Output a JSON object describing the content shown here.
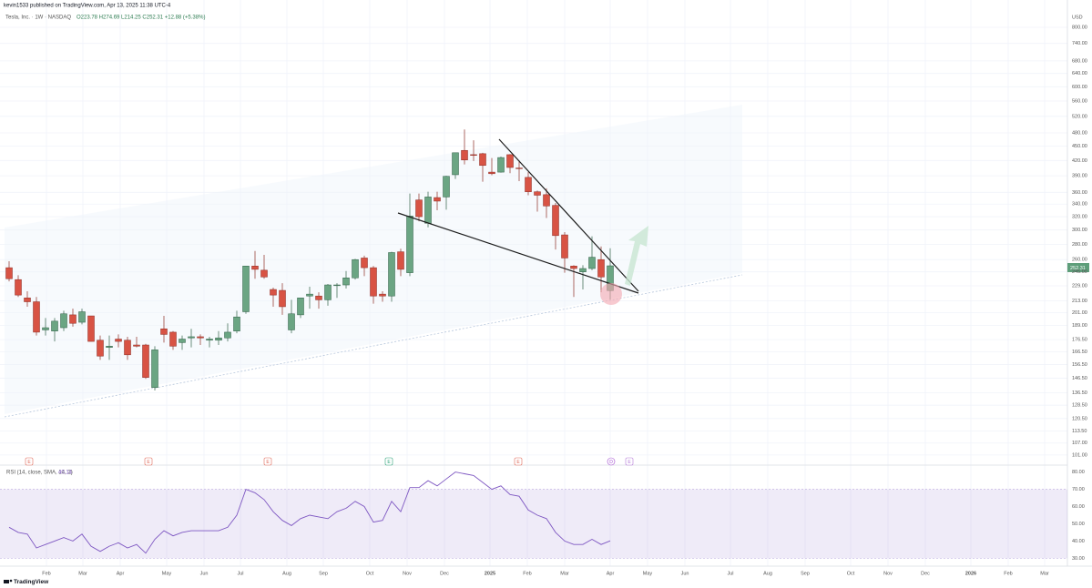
{
  "header": {
    "publisher": "kevin1533 published on TradingView.com, Apr 13, 2025 11:38 UTC-4",
    "symbol": "Tesla, Inc. · 1W · NASDAQ",
    "ohlc": "O223.78 H274.69 L214.25 C252.31 +12.88 (+5.38%)",
    "currency": "USD",
    "brand": "TradingView"
  },
  "events": [
    "E",
    "E",
    "E",
    "E",
    "E",
    "D",
    "E"
  ],
  "chart_data": [
    {
      "type": "candlestick",
      "log_scale": true,
      "grid": true,
      "up_color": "#6ba583",
      "down_color": "#d85344",
      "open": [
        250,
        236,
        216,
        212,
        185,
        184,
        187,
        199,
        192,
        198,
        176,
        170,
        177,
        176,
        172,
        172,
        140,
        186,
        183,
        174,
        178,
        179,
        176,
        176,
        178,
        184,
        202,
        252,
        247,
        225,
        224,
        185,
        199,
        218,
        218,
        214,
        230,
        230,
        238,
        262,
        250,
        220,
        218,
        270,
        244,
        347,
        310,
        351,
        352,
        392,
        441,
        432,
        434,
        397,
        397,
        432,
        405,
        387,
        361,
        356,
        338,
        293,
        252,
        245,
        249,
        260,
        223.78
      ],
      "high": [
        258,
        241,
        223,
        217,
        196,
        196,
        203,
        205,
        205,
        198,
        180,
        180,
        181,
        179,
        179,
        173,
        171,
        198,
        184,
        180,
        186,
        181,
        179,
        184,
        191,
        203,
        252,
        271,
        266,
        227,
        232,
        214,
        215,
        228,
        222,
        231,
        232,
        246,
        261,
        265,
        252,
        223,
        270,
        274,
        358,
        358,
        361,
        361,
        390,
        436,
        488,
        463,
        436,
        425,
        428,
        433,
        420,
        397,
        363,
        367,
        342,
        297,
        253,
        253,
        291,
        277,
        274.69
      ],
      "low": [
        234,
        217,
        207,
        180,
        180,
        175,
        184,
        188,
        190,
        175,
        160,
        160,
        170,
        160,
        170,
        146,
        138,
        174,
        168,
        168,
        170,
        172,
        170,
        172,
        175,
        182,
        200,
        237,
        237,
        207,
        199,
        182,
        196,
        205,
        205,
        208,
        216,
        226,
        236,
        240,
        210,
        212,
        212,
        240,
        240,
        313,
        304,
        330,
        331,
        384,
        412,
        419,
        379,
        391,
        396,
        395,
        380,
        355,
        328,
        318,
        273,
        244,
        217,
        225,
        247,
        222,
        214.25
      ],
      "close": [
        237,
        219,
        212,
        183,
        187,
        193,
        200,
        191,
        202,
        175,
        163,
        171,
        175,
        164,
        171,
        147,
        168,
        181,
        171,
        177,
        179,
        178,
        177,
        178,
        183,
        197,
        252,
        248,
        239,
        219,
        207,
        200,
        216,
        220,
        214,
        230,
        230,
        238,
        260,
        250,
        218,
        218,
        269,
        248,
        321,
        320,
        352,
        345,
        389,
        436,
        421,
        431,
        410,
        394,
        426,
        406,
        404,
        361,
        355,
        337,
        292,
        262,
        249,
        249,
        263,
        239,
        252.31
      ],
      "xlim": [
        -1,
        116.2
      ],
      "xticks": [
        {
          "value": 4.1,
          "label": "Feb"
        },
        {
          "value": 8.1,
          "label": "Mar"
        },
        {
          "value": 12.2,
          "label": "Apr"
        },
        {
          "value": 17.3,
          "label": "May"
        },
        {
          "value": 21.4,
          "label": "Jun"
        },
        {
          "value": 25.4,
          "label": "Jul"
        },
        {
          "value": 30.5,
          "label": "Aug"
        },
        {
          "value": 34.5,
          "label": "Sep"
        },
        {
          "value": 39.6,
          "label": "Oct"
        },
        {
          "value": 43.7,
          "label": "Nov"
        },
        {
          "value": 47.8,
          "label": "Dec"
        },
        {
          "value": 52.8,
          "label": "2025"
        },
        {
          "value": 56.9,
          "label": "Feb"
        },
        {
          "value": 61,
          "label": "Mar"
        },
        {
          "value": 66,
          "label": "Apr"
        },
        {
          "value": 70.1,
          "label": "May"
        },
        {
          "value": 74.2,
          "label": "Jun"
        },
        {
          "value": 79.2,
          "label": "Jul"
        },
        {
          "value": 83.3,
          "label": "Aug"
        },
        {
          "value": 87.4,
          "label": "Sep"
        },
        {
          "value": 92.4,
          "label": "Oct"
        },
        {
          "value": 96.5,
          "label": "Nov"
        },
        {
          "value": 100.6,
          "label": "Dec"
        },
        {
          "value": 105.6,
          "label": "2026"
        },
        {
          "value": 109.7,
          "label": "Feb"
        },
        {
          "value": 113.7,
          "label": "Mar"
        }
      ],
      "ylim": [
        96.6,
        866
      ],
      "yticks": [
        {
          "value": 800,
          "label": "800.00"
        },
        {
          "value": 740,
          "label": "740.00"
        },
        {
          "value": 680,
          "label": "680.00"
        },
        {
          "value": 640,
          "label": "640.00"
        },
        {
          "value": 600,
          "label": "600.00"
        },
        {
          "value": 560,
          "label": "560.00"
        },
        {
          "value": 520,
          "label": "520.00"
        },
        {
          "value": 480,
          "label": "480.00"
        },
        {
          "value": 450,
          "label": "450.00"
        },
        {
          "value": 420,
          "label": "420.00"
        },
        {
          "value": 390,
          "label": "390.00"
        },
        {
          "value": 360,
          "label": "360.00"
        },
        {
          "value": 340,
          "label": "340.00"
        },
        {
          "value": 320,
          "label": "320.00"
        },
        {
          "value": 300,
          "label": "300.00"
        },
        {
          "value": 280,
          "label": "280.00"
        },
        {
          "value": 260,
          "label": "260.00"
        },
        {
          "value": 245,
          "label": "245.00"
        },
        {
          "value": 229,
          "label": "229.00"
        },
        {
          "value": 213,
          "label": "213.00"
        },
        {
          "value": 201,
          "label": "201.00"
        },
        {
          "value": 189,
          "label": "189.00"
        },
        {
          "value": 176.5,
          "label": "176.50"
        },
        {
          "value": 166.5,
          "label": "166.50"
        },
        {
          "value": 156.5,
          "label": "156.50"
        },
        {
          "value": 146.5,
          "label": "146.50"
        },
        {
          "value": 136.5,
          "label": "136.50"
        },
        {
          "value": 128.5,
          "label": "128.50"
        },
        {
          "value": 120.5,
          "label": "120.50"
        },
        {
          "value": 113.5,
          "label": "113.50"
        },
        {
          "value": 107,
          "label": "107.00"
        },
        {
          "value": 101,
          "label": "101.00"
        }
      ]
    },
    {
      "type": "line",
      "title": "RSI (14, close, SMA, 14, 2)",
      "color": "#7e57c2",
      "values": [
        48,
        45,
        44,
        36,
        38,
        40,
        42,
        40,
        44,
        37,
        34,
        37,
        39,
        36,
        38,
        33,
        41,
        46,
        43,
        45,
        46,
        46,
        46,
        46,
        48,
        55,
        70,
        68,
        64,
        57,
        52,
        49,
        53,
        55,
        54,
        53,
        57,
        59,
        63,
        60,
        51,
        52,
        63,
        57,
        71,
        71,
        75,
        72,
        76,
        80,
        79,
        78,
        74,
        70,
        72,
        67,
        66,
        58,
        55,
        53,
        45,
        40,
        38,
        38,
        41,
        38,
        40.14
      ],
      "band": [
        30,
        70
      ],
      "xlim": [
        -1,
        116.2
      ],
      "ylim": [
        26.5,
        83.5
      ],
      "yticks": [
        {
          "value": 80,
          "label": "80.00"
        },
        {
          "value": 70,
          "label": "70.00"
        },
        {
          "value": 60,
          "label": "60.00"
        },
        {
          "value": 50,
          "label": "50.00"
        },
        {
          "value": 40,
          "label": "40.00"
        },
        {
          "value": 30,
          "label": "30.00"
        }
      ]
    }
  ]
}
